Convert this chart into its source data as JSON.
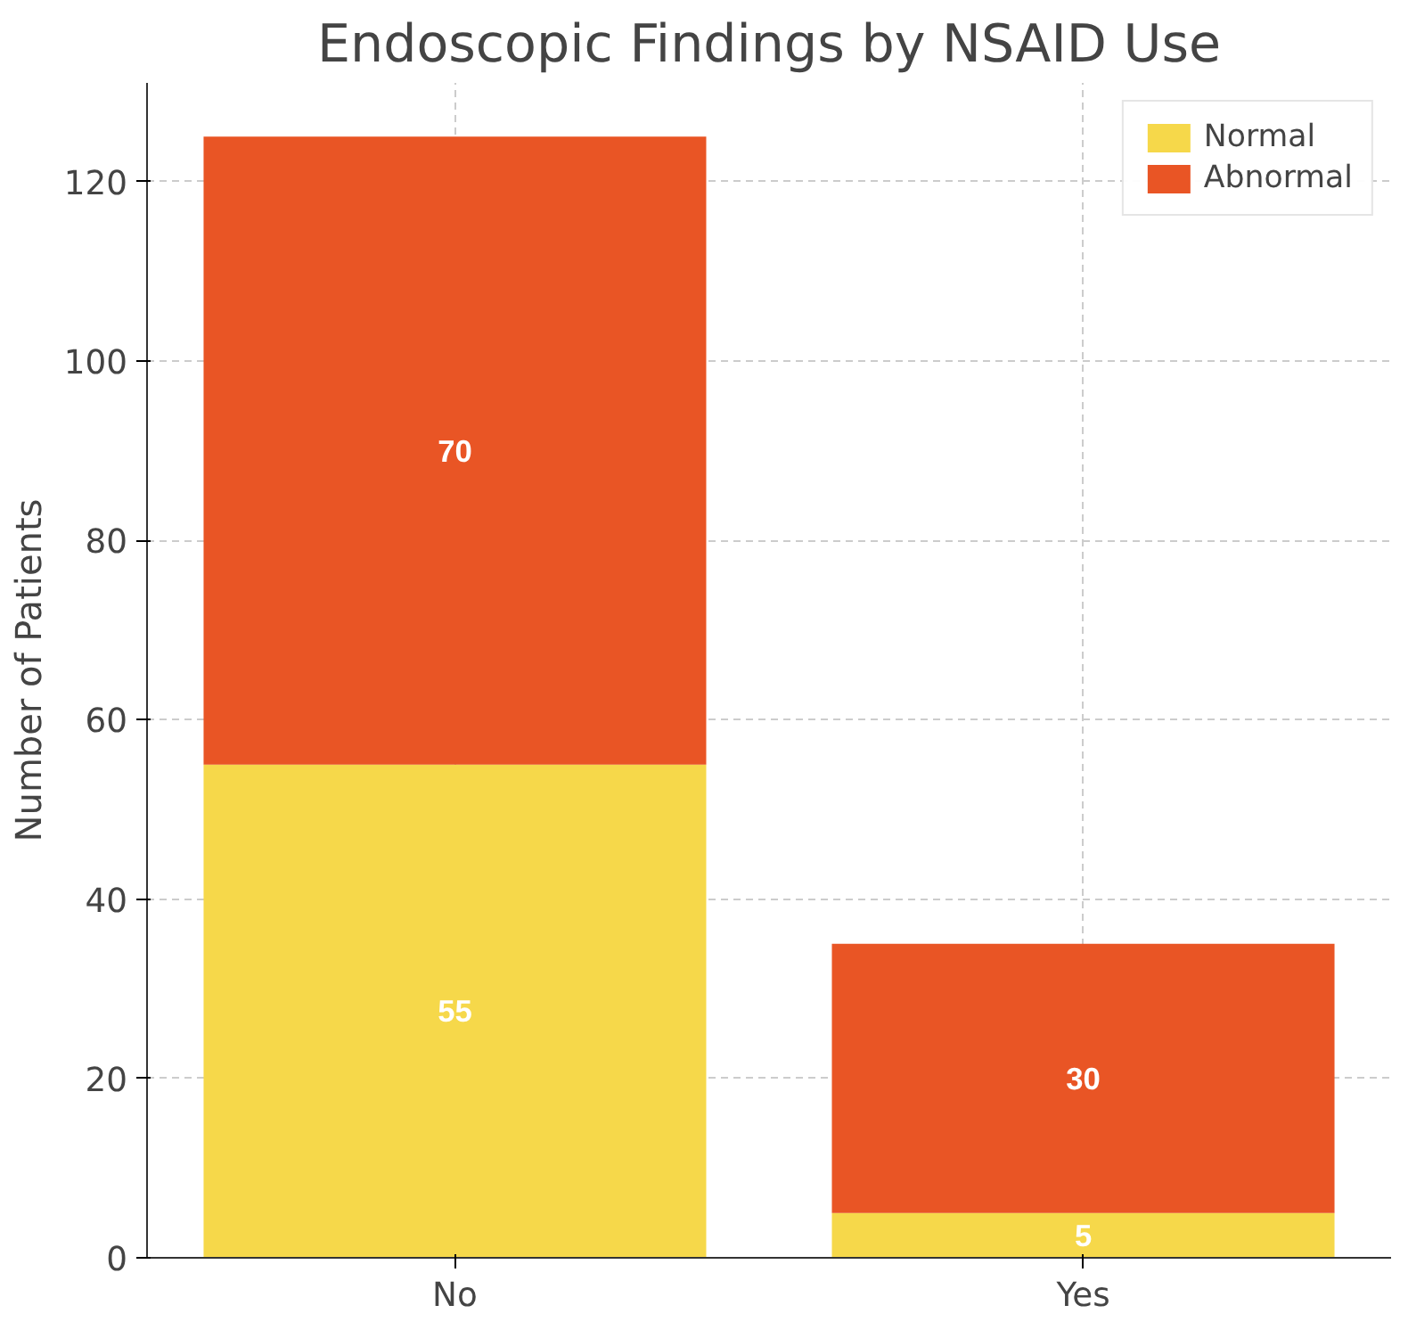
{
  "chart_data": {
    "type": "bar",
    "title": "Endoscopic Findings by NSAID Use",
    "ylabel": "Number of Patients",
    "categories": [
      "No",
      "Yes"
    ],
    "stacked": true,
    "series": [
      {
        "name": "Normal",
        "color": "#f6d84a",
        "values": [
          55,
          5
        ]
      },
      {
        "name": "Abnormal",
        "color": "#e95525",
        "values": [
          70,
          30
        ]
      }
    ],
    "ylim": [
      0,
      131
    ],
    "yticks": [
      0,
      20,
      40,
      60,
      80,
      100,
      120
    ],
    "grid": true,
    "legend": "top right",
    "data_labels": true
  }
}
